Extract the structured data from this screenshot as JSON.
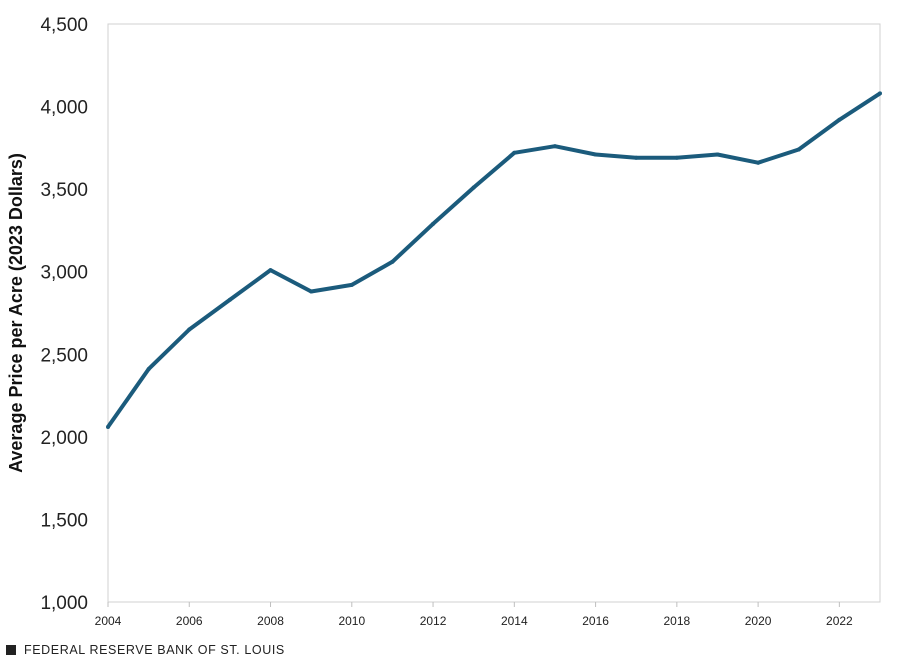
{
  "chart_data": {
    "type": "line",
    "title": "",
    "xlabel": "",
    "ylabel": "Average Price per Acre (2023 Dollars)",
    "x": [
      2004,
      2005,
      2006,
      2007,
      2008,
      2009,
      2010,
      2011,
      2012,
      2013,
      2014,
      2015,
      2016,
      2017,
      2018,
      2019,
      2020,
      2021,
      2022,
      2023
    ],
    "series": [
      {
        "values": [
          2060,
          2410,
          2650,
          2830,
          3010,
          2880,
          2920,
          3060,
          3290,
          3510,
          3720,
          3760,
          3710,
          3690,
          3690,
          3710,
          3660,
          3740,
          3920,
          4080
        ],
        "color": "#1b5b7c"
      }
    ],
    "xlim": [
      2004,
      2023
    ],
    "ylim": [
      1000,
      4500
    ],
    "xticks": [
      "2004",
      "2006",
      "2008",
      "2010",
      "2012",
      "2014",
      "2016",
      "2018",
      "2020",
      "2022"
    ],
    "yticks": [
      "1,000",
      "1,500",
      "2,000",
      "2,500",
      "3,000",
      "3,500",
      "4,000",
      "4,500"
    ],
    "grid": false
  },
  "source": {
    "text": "FEDERAL RESERVE BANK OF ST. LOUIS",
    "icon": "square-icon"
  }
}
